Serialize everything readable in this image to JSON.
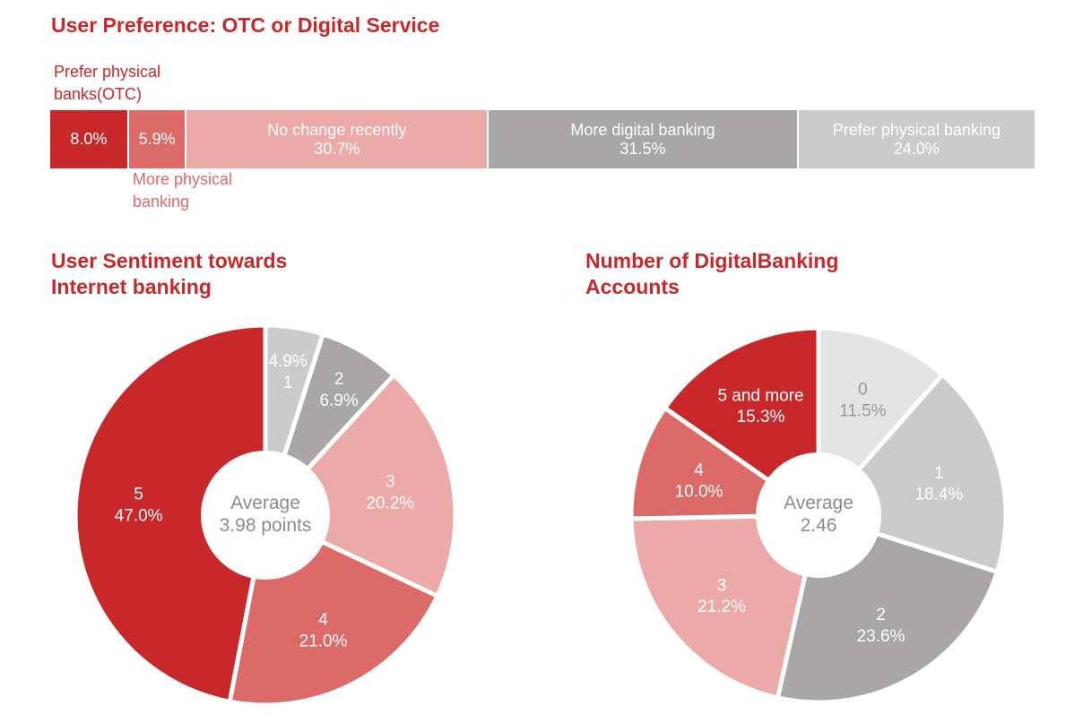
{
  "chart_data": [
    {
      "type": "bar",
      "orientation": "horizontal-stacked-100",
      "title": "User Preference: OTC or Digital Service",
      "colors": [
        "#c8282a",
        "#dc6a69",
        "#eba9a8",
        "#a8a6a7",
        "#cbcbcb"
      ],
      "series": [
        {
          "name": "Prefer physical banks(OTC)",
          "label": "",
          "value": 8.0,
          "display": "8.0%"
        },
        {
          "name": "More physical banking",
          "label": "",
          "value": 5.9,
          "display": "5.9%"
        },
        {
          "name": "No change recently",
          "label": "No change recently",
          "value": 30.7,
          "display": "30.7%"
        },
        {
          "name": "More digital banking",
          "label": "More digital banking",
          "value": 31.5,
          "display": "31.5%"
        },
        {
          "name": "Prefer physical banking",
          "label": "Prefer physical banking",
          "value": 24.0,
          "display": "24.0%"
        }
      ],
      "callouts": {
        "otc": "Prefer physical\nbanks(OTC)",
        "more_physical": "More physical\nbanking"
      }
    },
    {
      "type": "pie",
      "variant": "donut",
      "title": "User Sentiment towards\nInternet banking",
      "center_label": [
        "Average",
        "3.98 points"
      ],
      "slices": [
        {
          "label": "1",
          "value": 4.9,
          "display": "4.9%",
          "color": "#cbcbcb",
          "text_color": "#ffffff",
          "value_first": true
        },
        {
          "label": "2",
          "value": 6.9,
          "display": "6.9%",
          "color": "#a8a6a7",
          "text_color": "#ffffff",
          "value_first": false
        },
        {
          "label": "3",
          "value": 20.2,
          "display": "20.2%",
          "color": "#eba9a8",
          "text_color": "#ffffff",
          "value_first": false
        },
        {
          "label": "4",
          "value": 21.0,
          "display": "21.0%",
          "color": "#dc6a69",
          "text_color": "#ffffff",
          "value_first": false
        },
        {
          "label": "5",
          "value": 47.0,
          "display": "47.0%",
          "color": "#c8282a",
          "text_color": "#ffffff",
          "value_first": false
        }
      ]
    },
    {
      "type": "pie",
      "variant": "donut",
      "title": "Number of DigitalBanking\nAccounts",
      "center_label": [
        "Average",
        "2.46"
      ],
      "slices": [
        {
          "label": "0",
          "value": 11.5,
          "display": "11.5%",
          "color": "#e4e4e4",
          "text_color": "#999999",
          "value_first": false
        },
        {
          "label": "1",
          "value": 18.4,
          "display": "18.4%",
          "color": "#cbcbcb",
          "text_color": "#ffffff",
          "value_first": false
        },
        {
          "label": "2",
          "value": 23.6,
          "display": "23.6%",
          "color": "#a8a6a7",
          "text_color": "#ffffff",
          "value_first": false
        },
        {
          "label": "3",
          "value": 21.2,
          "display": "21.2%",
          "color": "#eba9a8",
          "text_color": "#ffffff",
          "value_first": false
        },
        {
          "label": "4",
          "value": 10.0,
          "display": "10.0%",
          "color": "#dc6a69",
          "text_color": "#ffffff",
          "value_first": false
        },
        {
          "label": "5 and more",
          "value": 15.3,
          "display": "15.3%",
          "color": "#c8282a",
          "text_color": "#ffffff",
          "value_first": false
        }
      ]
    }
  ]
}
